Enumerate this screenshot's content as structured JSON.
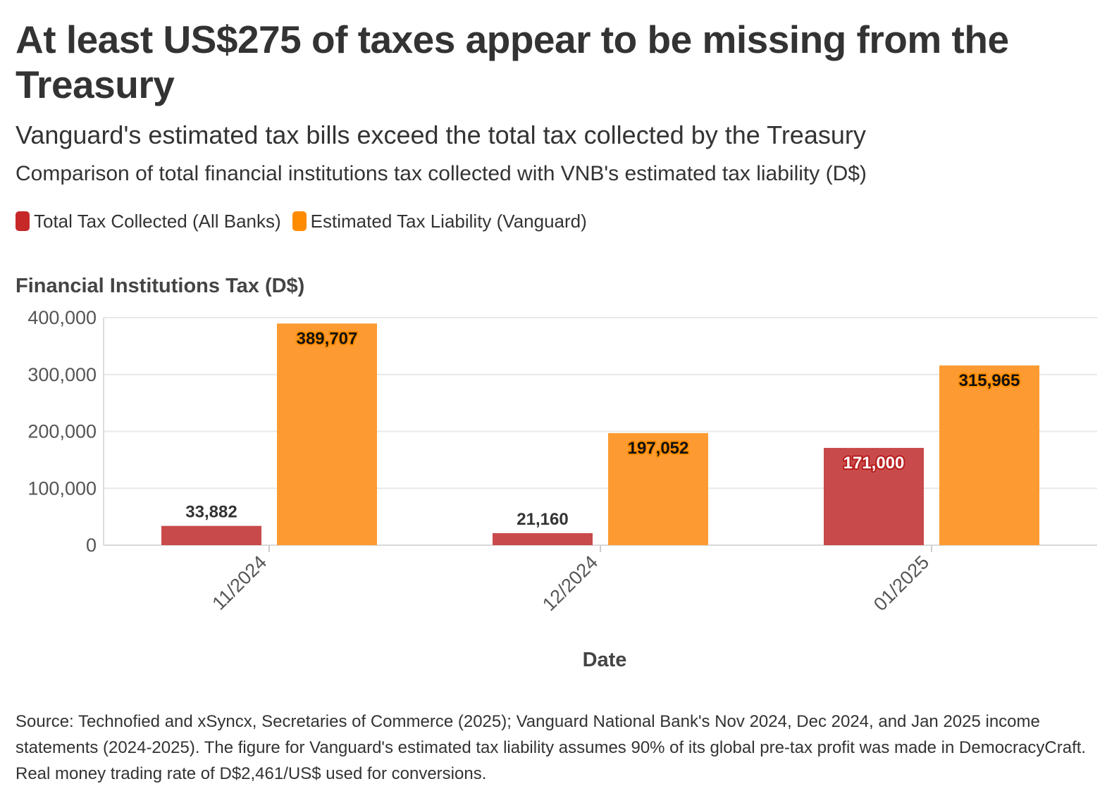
{
  "title": "At least US$275 of taxes appear to be missing from the Treasury",
  "subtitle": "Vanguard's estimated tax bills exceed the total tax collected by the Treasury",
  "description": "Comparison of total financial institutions tax collected with VNB's estimated tax liability (D$)",
  "source": "Source: Technofied and xSyncx, Secretaries of Commerce (2025); Vanguard National Bank's Nov 2024, Dec 2024, and Jan 2025 income statements (2024-2025). The figure for Vanguard's estimated tax liability assumes 90% of its global pre-tax profit was made in DemocracyCraft. Real money trading rate of D$2,461/US$ used for conversions.",
  "legend": [
    {
      "name": "Total Tax Collected (All Banks)",
      "color": "#c62828"
    },
    {
      "name": "Estimated Tax Liability (Vanguard)",
      "color": "#ff8c00"
    }
  ],
  "chart_data": {
    "type": "bar",
    "title": "At least US$275 of taxes appear to be missing from the Treasury",
    "ylabel": "Financial Institutions Tax (D$)",
    "xlabel": "Date",
    "categories": [
      "11/2024",
      "12/2024",
      "01/2025"
    ],
    "series": [
      {
        "name": "Total Tax Collected (All Banks)",
        "color": "#c94a4a",
        "values": [
          33882,
          21160,
          171000
        ],
        "labels": [
          "33,882",
          "21,160",
          "171,000"
        ]
      },
      {
        "name": "Estimated Tax Liability (Vanguard)",
        "color": "#fd9b32",
        "values": [
          389707,
          197052,
          315965
        ],
        "labels": [
          "389,707",
          "197,052",
          "315,965"
        ]
      }
    ],
    "ylim": [
      0,
      400000
    ],
    "yticks": [
      0,
      100000,
      200000,
      300000,
      400000
    ],
    "ytick_labels": [
      "0",
      "100,000",
      "200,000",
      "300,000",
      "400,000"
    ],
    "grid": true,
    "legend_position": "top-left"
  }
}
